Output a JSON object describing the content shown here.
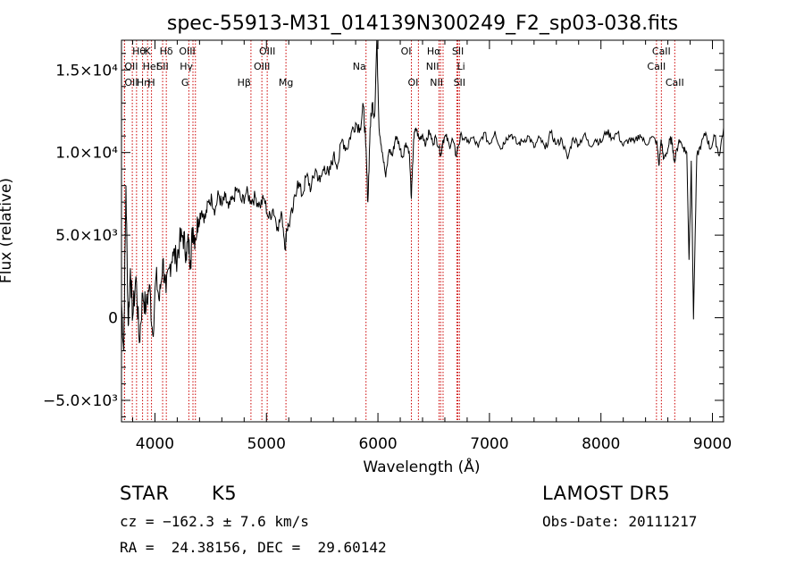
{
  "chart_data": {
    "type": "line",
    "title": "spec-55913-M31_014139N300249_F2_sp03-038.fits",
    "xlabel": "Wavelength (Å)",
    "ylabel": "Flux (relative)",
    "xlim": [
      3700,
      9100
    ],
    "ylim": [
      -6300,
      16800
    ],
    "x_ticks": [
      4000,
      5000,
      6000,
      7000,
      8000,
      9000
    ],
    "x_tick_labels": [
      "4000",
      "5000",
      "6000",
      "7000",
      "8000",
      "9000"
    ],
    "y_ticks": [
      -5000,
      0,
      5000,
      10000,
      15000
    ],
    "y_tick_labels": [
      "−5.0×10³",
      "0",
      "5.0×10³",
      "1.0×10⁴",
      "1.5×10⁴"
    ],
    "grid": false,
    "series_color": "#000000",
    "line_color": "#cc0000",
    "spectrum": {
      "x": [
        3700,
        3720,
        3740,
        3760,
        3780,
        3800,
        3830,
        3860,
        3890,
        3920,
        3950,
        3980,
        4010,
        4040,
        4070,
        4100,
        4130,
        4160,
        4190,
        4220,
        4250,
        4280,
        4300,
        4320,
        4340,
        4360,
        4390,
        4420,
        4450,
        4480,
        4510,
        4540,
        4570,
        4600,
        4630,
        4660,
        4700,
        4740,
        4780,
        4820,
        4860,
        4900,
        4940,
        4980,
        5020,
        5060,
        5100,
        5140,
        5170,
        5180,
        5200,
        5240,
        5280,
        5320,
        5360,
        5400,
        5440,
        5480,
        5520,
        5560,
        5600,
        5640,
        5680,
        5720,
        5760,
        5800,
        5840,
        5870,
        5890,
        5910,
        5930,
        5950,
        5970,
        5990,
        6010,
        6040,
        6070,
        6100,
        6130,
        6160,
        6190,
        6220,
        6250,
        6280,
        6300,
        6320,
        6340,
        6370,
        6400,
        6430,
        6460,
        6490,
        6520,
        6550,
        6565,
        6580,
        6610,
        6640,
        6670,
        6700,
        6720,
        6750,
        6800,
        6850,
        6900,
        6950,
        7000,
        7050,
        7100,
        7150,
        7200,
        7250,
        7300,
        7350,
        7400,
        7450,
        7500,
        7550,
        7600,
        7650,
        7700,
        7750,
        7800,
        7850,
        7900,
        7950,
        8000,
        8050,
        8100,
        8150,
        8200,
        8250,
        8300,
        8350,
        8400,
        8450,
        8500,
        8520,
        8540,
        8560,
        8600,
        8620,
        8640,
        8660,
        8700,
        8740,
        8770,
        8790,
        8810,
        8830,
        8860,
        8900,
        8940,
        8980,
        9020,
        9060,
        9100
      ],
      "y": [
        1000,
        -2000,
        8000,
        -500,
        3000,
        0,
        2500,
        -1500,
        1500,
        500,
        2000,
        -1000,
        2500,
        1000,
        3500,
        1500,
        3000,
        4000,
        3500,
        4500,
        5000,
        4000,
        4500,
        3500,
        5500,
        4800,
        6000,
        6500,
        6000,
        7000,
        7200,
        6500,
        7500,
        6800,
        7300,
        6600,
        7200,
        7800,
        7000,
        7600,
        7100,
        7300,
        6800,
        7200,
        6000,
        6600,
        5500,
        6200,
        4200,
        5400,
        5600,
        6600,
        8300,
        7400,
        8600,
        7800,
        9000,
        8200,
        9200,
        8600,
        9800,
        9300,
        10800,
        10200,
        11200,
        11800,
        11500,
        12800,
        10500,
        7000,
        11500,
        13000,
        12200,
        16800,
        11500,
        10000,
        8500,
        10200,
        9800,
        11000,
        10500,
        9700,
        10600,
        10100,
        7200,
        10800,
        11500,
        10800,
        11100,
        10500,
        11300,
        10600,
        10900,
        10300,
        9800,
        10700,
        11000,
        10400,
        10800,
        9800,
        10400,
        11100,
        10600,
        10900,
        10300,
        11200,
        10500,
        11300,
        10200,
        10900,
        11100,
        10500,
        10700,
        11000,
        10300,
        10900,
        10200,
        11200,
        10500,
        10800,
        9600,
        10900,
        10500,
        11100,
        10400,
        10800,
        10600,
        11300,
        10900,
        11200,
        10400,
        10800,
        10600,
        11100,
        10500,
        10900,
        10700,
        9200,
        10800,
        9600,
        10200,
        10800,
        10600,
        9400,
        10800,
        10300,
        10000,
        3500,
        9500,
        -100,
        9800,
        10500,
        11200,
        10200,
        11000,
        9800,
        11500
      ]
    },
    "lines": [
      {
        "label": "Hθ",
        "x": 3797,
        "row": 0,
        "anchor": "start"
      },
      {
        "label": "OII",
        "x": 3727,
        "row": 1,
        "anchor": "start"
      },
      {
        "label": "OII",
        "x": 3727,
        "row": 2,
        "anchor": "start"
      },
      {
        "label": "Hη",
        "x": 3835,
        "row": 2,
        "anchor": "start"
      },
      {
        "label": "K",
        "x": 3934,
        "row": 0,
        "anchor": "middle"
      },
      {
        "label": "HeI",
        "x": 3889,
        "row": 1,
        "anchor": "start"
      },
      {
        "label": "H",
        "x": 3969,
        "row": 2,
        "anchor": "middle"
      },
      {
        "label": "Hδ",
        "x": 4102,
        "row": 0,
        "anchor": "middle"
      },
      {
        "label": "SII",
        "x": 4069,
        "row": 1,
        "anchor": "middle"
      },
      {
        "label": "OIII",
        "x": 4363,
        "row": 0,
        "anchor": "end"
      },
      {
        "label": "Hγ",
        "x": 4341,
        "row": 1,
        "anchor": "end"
      },
      {
        "label": "G",
        "x": 4304,
        "row": 2,
        "anchor": "end"
      },
      {
        "label": "OIII",
        "x": 5007,
        "row": 0,
        "anchor": "middle"
      },
      {
        "label": "OIII",
        "x": 4959,
        "row": 1,
        "anchor": "middle"
      },
      {
        "label": "Hβ",
        "x": 4861,
        "row": 2,
        "anchor": "end"
      },
      {
        "label": "Mg",
        "x": 5175,
        "row": 2,
        "anchor": "middle"
      },
      {
        "label": "Na",
        "x": 5893,
        "row": 1,
        "anchor": "end"
      },
      {
        "label": "OI",
        "x": 6300,
        "row": 0,
        "anchor": "end"
      },
      {
        "label": "OI",
        "x": 6363,
        "row": 2,
        "anchor": "end"
      },
      {
        "label": "Hα",
        "x": 6563,
        "row": 0,
        "anchor": "end"
      },
      {
        "label": "NII",
        "x": 6548,
        "row": 1,
        "anchor": "end"
      },
      {
        "label": "NII",
        "x": 6584,
        "row": 2,
        "anchor": "end"
      },
      {
        "label": "SII",
        "x": 6717,
        "row": 0,
        "anchor": "middle"
      },
      {
        "label": "Li",
        "x": 6708,
        "row": 1,
        "anchor": "start"
      },
      {
        "label": "SII",
        "x": 6731,
        "row": 2,
        "anchor": "middle"
      },
      {
        "label": "CaII",
        "x": 8542,
        "row": 0,
        "anchor": "middle"
      },
      {
        "label": "CaII",
        "x": 8498,
        "row": 1,
        "anchor": "middle"
      },
      {
        "label": "CaII",
        "x": 8662,
        "row": 2,
        "anchor": "middle"
      }
    ]
  },
  "info": {
    "class_label": "STAR",
    "subclass": "K5",
    "survey": "LAMOST DR5",
    "redshift": "cz = −162.3 ± 7.6 km/s",
    "obs_date": "Obs-Date: 20111217",
    "coords": "RA =  24.38156, DEC =  29.60142"
  }
}
